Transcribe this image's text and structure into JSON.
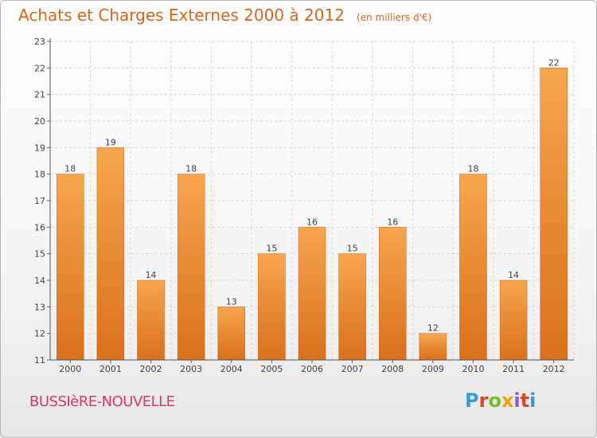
{
  "header": {
    "title": "Achats et Charges Externes 2000 à 2012",
    "unit": "(en milliers d'€)"
  },
  "footer": {
    "commune": "BUSSIèRE-NOUVELLE",
    "brand": "Proxiti",
    "brand_colors": [
      "#3a9bd8",
      "#e0452b",
      "#7bbd2a",
      "#f2a310",
      "#8a5bc2",
      "#e0452b",
      "#3a9bd8"
    ]
  },
  "colors": {
    "bar_top": "#f7a64e",
    "bar_bottom": "#d9701c",
    "title": "#d9651b",
    "grid": "#d6d6d6"
  },
  "chart_data": {
    "type": "bar",
    "categories": [
      "2000",
      "2001",
      "2002",
      "2003",
      "2004",
      "2005",
      "2006",
      "2007",
      "2008",
      "2009",
      "2010",
      "2011",
      "2012"
    ],
    "values": [
      18,
      19,
      14,
      18,
      13,
      15,
      16,
      15,
      16,
      12,
      18,
      14,
      22
    ],
    "data_labels": [
      "18",
      "19",
      "14",
      "18",
      "13",
      "15",
      "16",
      "15",
      "16",
      "12",
      "18",
      "14",
      "22"
    ],
    "yticks": [
      11,
      12,
      13,
      14,
      15,
      16,
      17,
      18,
      19,
      20,
      21,
      22,
      23
    ],
    "ylim": [
      11,
      23
    ],
    "title": "Achats et Charges Externes 2000 à 2012",
    "xlabel": "",
    "ylabel": "",
    "grid": true
  }
}
